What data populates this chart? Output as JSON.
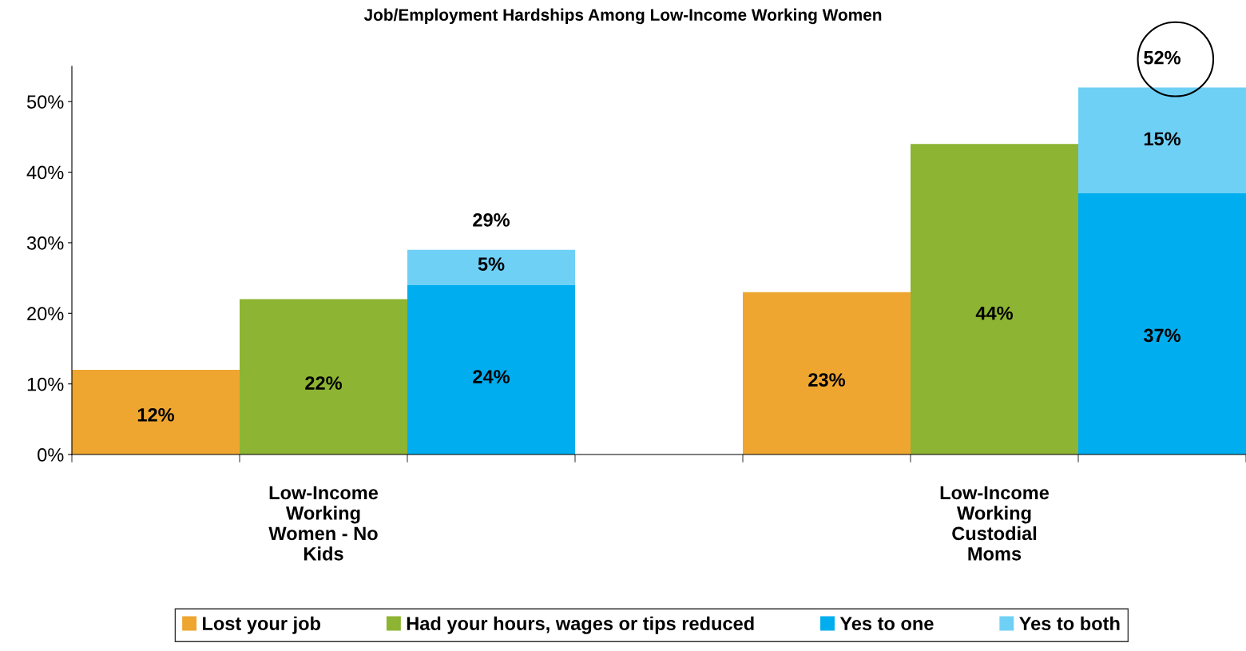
{
  "chart_data": {
    "type": "bar",
    "title": "Job/Employment Hardships Among Low-Income Working Women",
    "categories": [
      null,
      "Low-Income Working Women - No Kids",
      null,
      null,
      null,
      "Low-Income Working Custodial Moms",
      null
    ],
    "stacked": true,
    "series": [
      {
        "name": "Lost your job",
        "color": "#eea631",
        "values": [
          12,
          null,
          null,
          null,
          23,
          null,
          null
        ],
        "value_labels": [
          "12%",
          null,
          null,
          null,
          "23%",
          null,
          null
        ]
      },
      {
        "name": "Had your hours, wages or tips reduced",
        "color": "#8db432",
        "values": [
          null,
          22,
          null,
          null,
          null,
          44,
          null
        ],
        "value_labels": [
          null,
          "22%",
          null,
          null,
          null,
          "44%",
          null
        ]
      },
      {
        "name": "Yes to one",
        "color": "#00aeef",
        "values": [
          null,
          null,
          24,
          null,
          null,
          null,
          37
        ],
        "value_labels": [
          null,
          null,
          "24%",
          null,
          null,
          null,
          "37%"
        ]
      },
      {
        "name": "Yes to both",
        "color": "#6fd0f6",
        "values": [
          null,
          null,
          5,
          null,
          null,
          null,
          15
        ],
        "value_labels": [
          null,
          null,
          "5%",
          null,
          null,
          null,
          "15%"
        ]
      }
    ],
    "totals": [
      null,
      null,
      "29%",
      null,
      null,
      null,
      "52%"
    ],
    "ylim": [
      0,
      55
    ],
    "yticks": [
      {
        "value": 0,
        "label": "0%"
      },
      {
        "value": 10,
        "label": "10%"
      },
      {
        "value": 20,
        "label": "20%"
      },
      {
        "value": 30,
        "label": "30%"
      },
      {
        "value": 40,
        "label": "40%"
      },
      {
        "value": 50,
        "label": "50%"
      }
    ],
    "grid": false,
    "legend": "bottom"
  }
}
